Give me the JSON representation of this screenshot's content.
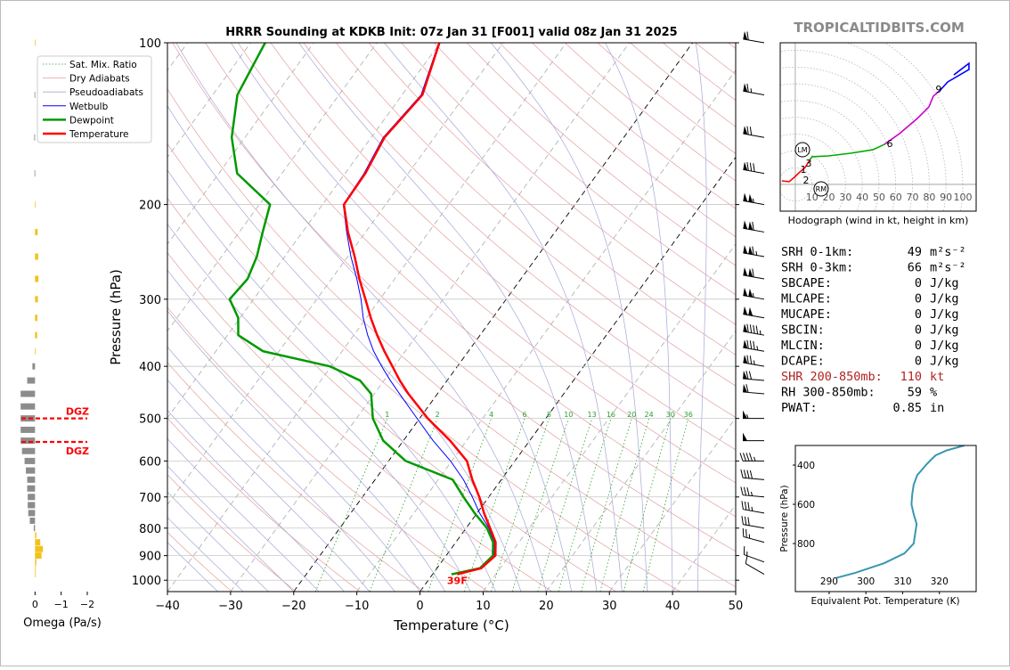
{
  "site": "TROPICALTIDBITS.COM",
  "chart_data": [
    {
      "type": "skewt",
      "title": "HRRR Sounding at KDKB Init: 07z Jan 31 [F001] valid 08z Jan 31 2025",
      "x_label": "Temperature (°C)",
      "y_label": "Pressure (hPa)",
      "xlim": [
        -40,
        50
      ],
      "ylim": [
        1050,
        100
      ],
      "log_y": true,
      "grid": true,
      "legend": "upper left",
      "xticks": [
        {
          "value": -40,
          "label": "−40"
        },
        {
          "value": -30,
          "label": "−30"
        },
        {
          "value": -20,
          "label": "−20"
        },
        {
          "value": -10,
          "label": "−10"
        },
        0,
        10,
        20,
        30,
        40,
        50
      ],
      "yticks": [
        100,
        200,
        300,
        400,
        500,
        600,
        700,
        800,
        900,
        1000
      ],
      "reference_lines": [
        {
          "name": "Sat. Mix. Ratio",
          "color": "#2ca02c"
        },
        {
          "name": "Dry Adiabats",
          "color": "#e3a0a0"
        },
        {
          "name": "Pseudoadiabats",
          "color": "#a6a6d8"
        }
      ],
      "mixing_ratio_labels": [
        1,
        2,
        4,
        6,
        8,
        10,
        13,
        16,
        20,
        24,
        30,
        36
      ],
      "pressure": [
        975,
        950,
        900,
        850,
        800,
        750,
        700,
        650,
        600,
        550,
        500,
        450,
        425,
        400,
        375,
        350,
        325,
        300,
        275,
        250,
        225,
        200,
        175,
        150,
        125,
        100
      ],
      "series": [
        {
          "name": "Wetbulb",
          "color": "#0000ff",
          "values": [
            3.4,
            6.9,
            7.6,
            6.1,
            3.6,
            0.4,
            -2.6,
            -6.0,
            -10.2,
            -15.3,
            -20.4,
            -26.0,
            -29.0,
            -32.0,
            -35.0,
            -37.8,
            -40.5,
            -43.0,
            -46.0,
            -49.5,
            -53.0,
            -56.7,
            -57.0,
            -58.1,
            -57.0,
            -60.2
          ]
        },
        {
          "name": "Dewpoint",
          "color": "#009900",
          "values": [
            3.0,
            6.8,
            7.4,
            5.9,
            3.3,
            -0.4,
            -4.0,
            -7.7,
            -17.3,
            -23.2,
            -27.4,
            -30.5,
            -33.8,
            -40.2,
            -52.5,
            -58.3,
            -60.3,
            -63.8,
            -63.3,
            -64.4,
            -66.3,
            -68.3,
            -77.1,
            -82.1,
            -86.1,
            -87.7
          ]
        },
        {
          "name": "Temperature",
          "color": "#ff0000",
          "values": [
            3.9,
            7.0,
            7.8,
            6.3,
            3.8,
            1.1,
            -1.5,
            -4.6,
            -7.6,
            -12.6,
            -18.7,
            -24.6,
            -27.5,
            -30.3,
            -33.3,
            -36.3,
            -39.3,
            -42.3,
            -45.6,
            -48.9,
            -52.8,
            -56.6,
            -56.8,
            -57.9,
            -56.8,
            -60.1
          ]
        }
      ],
      "surface_label": "39F",
      "wind": {
        "pressure": [
          975,
          925,
          850,
          800,
          750,
          700,
          650,
          600,
          550,
          500,
          450,
          425,
          400,
          375,
          350,
          325,
          300,
          275,
          250,
          225,
          200,
          175,
          150,
          125,
          100
        ],
        "speed": [
          10,
          15,
          25,
          30,
          35,
          35,
          40,
          45,
          50,
          55,
          60,
          70,
          75,
          85,
          95,
          100,
          105,
          110,
          115,
          110,
          105,
          80,
          70,
          65,
          60
        ],
        "direction": [
          300,
          290,
          285,
          280,
          280,
          275,
          275,
          270,
          270,
          270,
          275,
          275,
          280,
          280,
          280,
          280,
          280,
          280,
          280,
          280,
          280,
          280,
          280,
          280,
          280
        ]
      }
    },
    {
      "type": "omega",
      "x_label": "Omega (Pa/s)",
      "xlim": [
        1,
        -2
      ],
      "xticks": [
        0,
        {
          "value": -1,
          "label": "−1"
        },
        {
          "value": -2,
          "label": "−2"
        }
      ],
      "ylim": [
        1050,
        100
      ],
      "log_y": true,
      "pressure": [
        100,
        125,
        150,
        175,
        200,
        225,
        250,
        275,
        300,
        325,
        350,
        375,
        400,
        425,
        450,
        475,
        500,
        525,
        550,
        575,
        600,
        625,
        650,
        675,
        700,
        725,
        750,
        775,
        800,
        825,
        850,
        875,
        900,
        925,
        950,
        975
      ],
      "values": [
        -0.02,
        0.02,
        0.03,
        0.02,
        -0.01,
        -0.1,
        -0.12,
        -0.13,
        -0.11,
        -0.09,
        -0.08,
        -0.02,
        0.1,
        0.3,
        0.55,
        0.55,
        0.55,
        0.55,
        0.55,
        0.5,
        0.4,
        0.35,
        0.3,
        0.3,
        0.28,
        0.28,
        0.26,
        0.2,
        0.05,
        -0.05,
        -0.2,
        -0.3,
        -0.25,
        -0.05,
        -0.03,
        -0.02
      ],
      "positive_color": "#8c8c8c",
      "negative_color": "#f2c21a",
      "dgz": {
        "labels": [
          "DGZ",
          "DGZ"
        ],
        "pressure": [
          500,
          553
        ],
        "color": "#ff0000"
      }
    },
    {
      "type": "hodograph",
      "caption": "Hodograph (wind in kt, height in km)",
      "xlim": [
        -9,
        108
      ],
      "ylim": [
        -16,
        84.6
      ],
      "rings": [
        10,
        20,
        30,
        40,
        50,
        60,
        70,
        80,
        90,
        100
      ],
      "series": [
        {
          "color": "#ff0000",
          "u": [
            -8.0,
            -3.7,
            -0.5,
            2.7,
            5.9,
            8.5
          ],
          "v": [
            2.1,
            1.6,
            4.3,
            7.4,
            10.1,
            14.4
          ]
        },
        {
          "color": "#00aa00",
          "u": [
            8.5,
            10.1,
            19.7,
            33.0,
            46.3,
            53.2
          ],
          "v": [
            14.4,
            16.5,
            17.0,
            18.6,
            20.7,
            23.9
          ]
        },
        {
          "color": "#cc00cc",
          "u": [
            53.2,
            62.2,
            72.9,
            79.8,
            82.4,
            86.2
          ],
          "v": [
            23.9,
            30.3,
            39.4,
            46.3,
            52.7,
            55.9
          ]
        },
        {
          "color": "#0000ff",
          "u": [
            86.2,
            91.0,
            103.7,
            103.7,
            94.7
          ],
          "v": [
            55.9,
            61.2,
            68.6,
            72.3,
            65.4
          ]
        }
      ],
      "height_labels": {
        "values": [
          1,
          2,
          3,
          6,
          9
        ],
        "u": [
          4.8,
          6.4,
          8.0,
          56.4,
          85.6
        ],
        "v": [
          9.0,
          2.7,
          12.8,
          24.5,
          56.9
        ]
      },
      "storm_motion": {
        "labels": [
          "LM",
          "RM"
        ],
        "u": [
          4.3,
          15.4
        ],
        "v": [
          20.7,
          -2.7
        ]
      }
    },
    {
      "type": "line",
      "x_label": "Equivalent Pot. Temperature (K)",
      "y_label": "Pressure (hPa)",
      "xlim": [
        280.8,
        330
      ],
      "ylim": [
        1045,
        300
      ],
      "xticks": [
        290,
        300,
        310,
        320
      ],
      "yticks": [
        400,
        600,
        800
      ],
      "color": "#3a96b0",
      "pressure": [
        975,
        950,
        925,
        900,
        850,
        800,
        750,
        700,
        650,
        600,
        550,
        500,
        450,
        425,
        400,
        375,
        350,
        325,
        300
      ],
      "values": [
        292.0,
        297.0,
        301.0,
        305.0,
        310.5,
        313.0,
        313.4,
        313.8,
        313.0,
        312.4,
        312.6,
        313.0,
        314.0,
        315.2,
        316.3,
        317.6,
        319.0,
        322.0,
        326.8
      ]
    }
  ],
  "indices": [
    {
      "label": "SRH 0-1km:",
      "value": 49,
      "unit": "m²s⁻²"
    },
    {
      "label": "SRH 0-3km:",
      "value": 66,
      "unit": "m²s⁻²"
    },
    {
      "label": "SBCAPE:",
      "value": 0,
      "unit": "J/kg"
    },
    {
      "label": "MLCAPE:",
      "value": 0,
      "unit": "J/kg"
    },
    {
      "label": "MUCAPE:",
      "value": 0,
      "unit": "J/kg"
    },
    {
      "label": "SBCIN:",
      "value": 0,
      "unit": "J/kg"
    },
    {
      "label": "MLCIN:",
      "value": 0,
      "unit": "J/kg"
    },
    {
      "label": "DCAPE:",
      "value": 0,
      "unit": "J/kg"
    },
    {
      "label": "SHR 200-850mb:",
      "value": 110,
      "unit": "kt",
      "color": "#b22222"
    },
    {
      "label": "RH 300-850mb:",
      "value": 59,
      "unit": "%"
    },
    {
      "label": "PWAT:",
      "value": 0.85,
      "unit": "in"
    }
  ]
}
